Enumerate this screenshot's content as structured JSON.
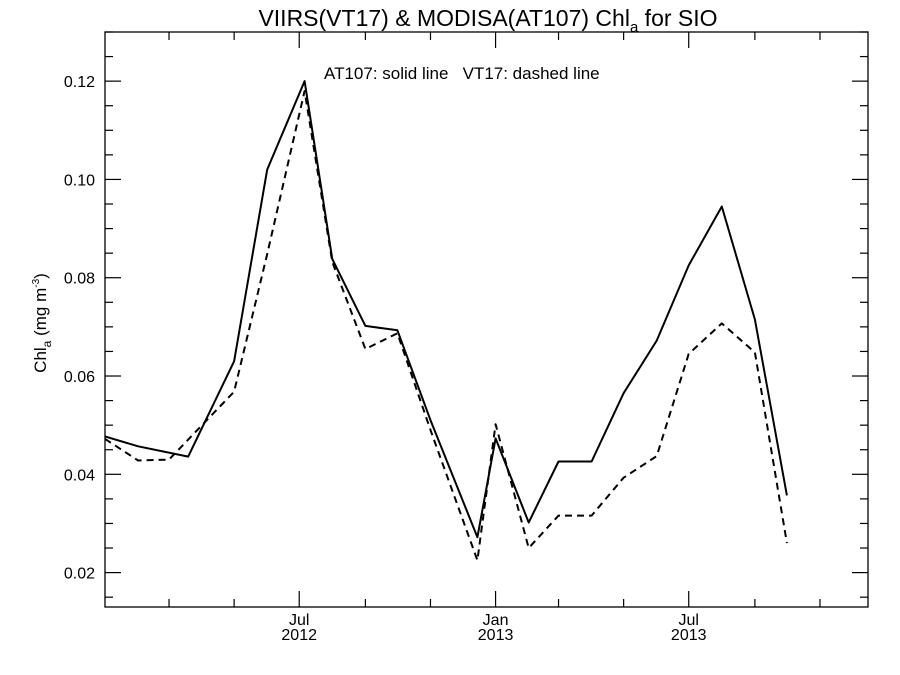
{
  "chart_data": {
    "type": "line",
    "title": {
      "main": "VIIRS(VT17) & MODISA(AT107)  Chl",
      "subscript": "a",
      "suffix": " for SIO"
    },
    "annotation": "AT107: solid line   VT17: dashed line",
    "ylabel": {
      "main": "Chl",
      "subscript": "a",
      "unit_pre": " (mg m",
      "unit_sup": "-3",
      "unit_post": ")"
    },
    "xlabel": "",
    "x_axis": {
      "range": [
        "2012-01-01",
        "2013-12-16"
      ],
      "major_tick_labels": [
        {
          "date": "2012-07-01",
          "line1": "Jul",
          "line2": "2012"
        },
        {
          "date": "2013-01-01",
          "line1": "Jan",
          "line2": "2013"
        },
        {
          "date": "2013-07-01",
          "line1": "Jul",
          "line2": "2013"
        }
      ],
      "minor_ticks": [
        "2012-03-01",
        "2012-05-01",
        "2012-09-01",
        "2012-11-01",
        "2013-03-01",
        "2013-05-01",
        "2013-09-01",
        "2013-11-01"
      ]
    },
    "y_axis": {
      "range": [
        0.013,
        0.13
      ],
      "major_ticks": [
        "0.02",
        "0.04",
        "0.06",
        "0.08",
        "0.10",
        "0.12"
      ],
      "minor_step": 0.005
    },
    "grid": false,
    "series": [
      {
        "name": "AT107",
        "style": "solid",
        "color": "#000000",
        "points": [
          [
            "2012-01-01",
            0.0477
          ],
          [
            "2012-02-01",
            0.0457
          ],
          [
            "2012-03-19",
            0.0436
          ],
          [
            "2012-05-01",
            0.063
          ],
          [
            "2012-06-01",
            0.102
          ],
          [
            "2012-07-06",
            0.12
          ],
          [
            "2012-08-01",
            0.0838
          ],
          [
            "2012-09-01",
            0.0702
          ],
          [
            "2012-10-01",
            0.0693
          ],
          [
            "2012-11-01",
            0.051
          ],
          [
            "2012-12-15",
            0.0272
          ],
          [
            "2013-01-01",
            0.0473
          ],
          [
            "2013-02-01",
            0.0302
          ],
          [
            "2013-03-01",
            0.0426
          ],
          [
            "2013-04-01",
            0.0426
          ],
          [
            "2013-05-01",
            0.0565
          ],
          [
            "2013-06-01",
            0.0672
          ],
          [
            "2013-07-01",
            0.0825
          ],
          [
            "2013-08-01",
            0.0945
          ],
          [
            "2013-09-01",
            0.0715
          ],
          [
            "2013-10-01",
            0.0357
          ]
        ]
      },
      {
        "name": "VT17",
        "style": "dashed",
        "color": "#000000",
        "points": [
          [
            "2012-01-01",
            0.0472
          ],
          [
            "2012-02-01",
            0.0428
          ],
          [
            "2012-03-01",
            0.043
          ],
          [
            "2012-05-01",
            0.0568
          ],
          [
            "2012-06-01",
            0.0848
          ],
          [
            "2012-07-06",
            0.118
          ],
          [
            "2012-08-01",
            0.0832
          ],
          [
            "2012-09-01",
            0.0655
          ],
          [
            "2012-10-01",
            0.0687
          ],
          [
            "2012-11-01",
            0.049
          ],
          [
            "2012-12-15",
            0.0225
          ],
          [
            "2013-01-01",
            0.0502
          ],
          [
            "2013-02-01",
            0.025
          ],
          [
            "2013-03-01",
            0.0316
          ],
          [
            "2013-04-01",
            0.0316
          ],
          [
            "2013-05-01",
            0.0393
          ],
          [
            "2013-06-01",
            0.0437
          ],
          [
            "2013-07-01",
            0.0645
          ],
          [
            "2013-08-01",
            0.0707
          ],
          [
            "2013-09-01",
            0.0648
          ],
          [
            "2013-10-01",
            0.026
          ]
        ]
      }
    ]
  }
}
